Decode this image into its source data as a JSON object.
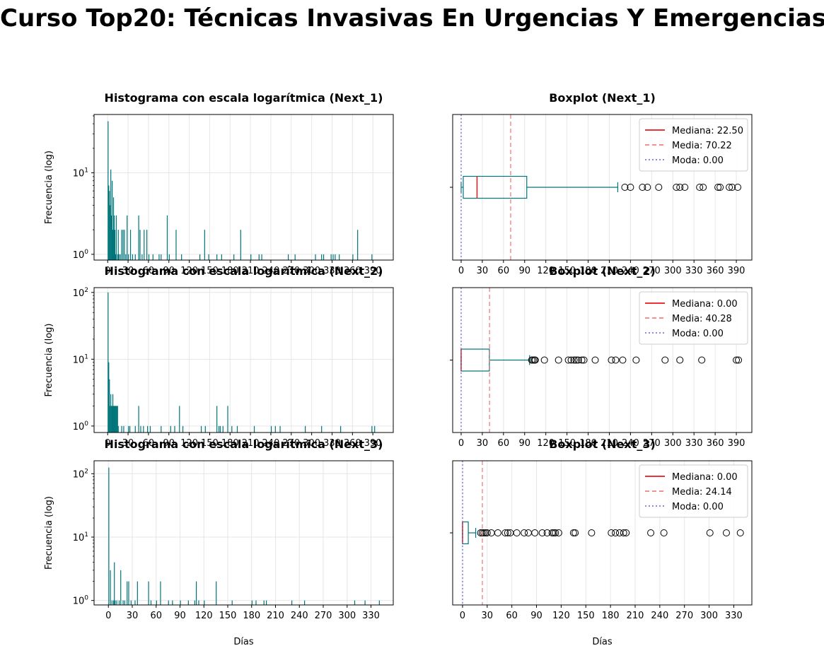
{
  "figure": {
    "title": "Curso Top20: Técnicas Invasivas En Urgencias Y Emergencias"
  },
  "chart_data": [
    {
      "type": "bar",
      "title": "Histograma con escala logarítmica (Next_1)",
      "xlabel": "",
      "ylabel": "Frecuencia (log)",
      "yscale": "log",
      "ylim": [
        0.85,
        52
      ],
      "yticks": [
        1,
        10
      ],
      "xlim": [
        -20,
        420
      ],
      "xticks": [
        0,
        30,
        60,
        90,
        120,
        150,
        180,
        210,
        240,
        270,
        300,
        330,
        360,
        390
      ],
      "grid": true,
      "color": "#00767a",
      "bins": [
        [
          0,
          43
        ],
        [
          1,
          7
        ],
        [
          2,
          6
        ],
        [
          3,
          4
        ],
        [
          4,
          11
        ],
        [
          5,
          3
        ],
        [
          6,
          8
        ],
        [
          7,
          2
        ],
        [
          8,
          5
        ],
        [
          9,
          3
        ],
        [
          10,
          2
        ],
        [
          11,
          1
        ],
        [
          12,
          3
        ],
        [
          14,
          1
        ],
        [
          15,
          2
        ],
        [
          16,
          1
        ],
        [
          18,
          1
        ],
        [
          20,
          2
        ],
        [
          22,
          2
        ],
        [
          24,
          2
        ],
        [
          26,
          1
        ],
        [
          28,
          3
        ],
        [
          30,
          1
        ],
        [
          33,
          2
        ],
        [
          36,
          1
        ],
        [
          40,
          1
        ],
        [
          45,
          3
        ],
        [
          47,
          2
        ],
        [
          50,
          1
        ],
        [
          53,
          2
        ],
        [
          57,
          2
        ],
        [
          60,
          1
        ],
        [
          66,
          1
        ],
        [
          75,
          1
        ],
        [
          78,
          1
        ],
        [
          87,
          3
        ],
        [
          90,
          1
        ],
        [
          100,
          2
        ],
        [
          108,
          1
        ],
        [
          135,
          1
        ],
        [
          142,
          2
        ],
        [
          148,
          1
        ],
        [
          160,
          1
        ],
        [
          167,
          1
        ],
        [
          185,
          1
        ],
        [
          195,
          2
        ],
        [
          210,
          1
        ],
        [
          222,
          1
        ],
        [
          226,
          1
        ],
        [
          265,
          1
        ],
        [
          275,
          1
        ],
        [
          305,
          1
        ],
        [
          314,
          1
        ],
        [
          317,
          1
        ],
        [
          328,
          1
        ],
        [
          331,
          1
        ],
        [
          334,
          1
        ],
        [
          340,
          1
        ],
        [
          360,
          1
        ],
        [
          367,
          2
        ],
        [
          388,
          1
        ]
      ]
    },
    {
      "type": "boxplot",
      "title": "Boxplot (Next_1)",
      "xlim": [
        -12,
        412
      ],
      "xticks": [
        0,
        30,
        60,
        90,
        120,
        150,
        180,
        210,
        240,
        270,
        300,
        330,
        360,
        390
      ],
      "grid": true,
      "box": {
        "q1": 3,
        "median": 22.5,
        "q3": 93,
        "whislo": 0,
        "whishi": 222
      },
      "fliers": [
        232,
        240,
        257,
        264,
        280,
        305,
        310,
        317,
        338,
        343,
        364,
        367,
        380,
        384,
        392
      ],
      "mean": 70.22,
      "mode": 0.0,
      "legend_position": "upper-right",
      "legend": [
        "Mediana: 22.50",
        "Media: 70.22",
        "Moda: 0.00"
      ]
    },
    {
      "type": "bar",
      "title": "Histograma con escala logarítmica (Next_2)",
      "xlabel": "",
      "ylabel": "Frecuencia (log)",
      "yscale": "log",
      "ylim": [
        0.8,
        118
      ],
      "yticks": [
        1,
        10,
        100
      ],
      "xlim": [
        -20,
        420
      ],
      "xticks": [
        0,
        30,
        60,
        90,
        120,
        150,
        180,
        210,
        240,
        270,
        300,
        330,
        360,
        390
      ],
      "grid": true,
      "color": "#00767a",
      "bins": [
        [
          0,
          100
        ],
        [
          1,
          9
        ],
        [
          2,
          5
        ],
        [
          3,
          2
        ],
        [
          4,
          3
        ],
        [
          5,
          2
        ],
        [
          6,
          2
        ],
        [
          7,
          3
        ],
        [
          8,
          2
        ],
        [
          9,
          2
        ],
        [
          10,
          2
        ],
        [
          11,
          2
        ],
        [
          12,
          2
        ],
        [
          13,
          2
        ],
        [
          14,
          2
        ],
        [
          15,
          1
        ],
        [
          20,
          1
        ],
        [
          23,
          1
        ],
        [
          30,
          1
        ],
        [
          32,
          1
        ],
        [
          40,
          1
        ],
        [
          45,
          2
        ],
        [
          48,
          1
        ],
        [
          52,
          1
        ],
        [
          58,
          1
        ],
        [
          62,
          1
        ],
        [
          78,
          1
        ],
        [
          92,
          1
        ],
        [
          98,
          1
        ],
        [
          105,
          2
        ],
        [
          110,
          1
        ],
        [
          137,
          1
        ],
        [
          143,
          1
        ],
        [
          160,
          2
        ],
        [
          163,
          1
        ],
        [
          165,
          1
        ],
        [
          169,
          1
        ],
        [
          176,
          2
        ],
        [
          182,
          1
        ],
        [
          190,
          1
        ],
        [
          215,
          1
        ],
        [
          240,
          1
        ],
        [
          246,
          1
        ],
        [
          253,
          1
        ],
        [
          290,
          1
        ],
        [
          314,
          1
        ],
        [
          342,
          1
        ],
        [
          388,
          1
        ],
        [
          392,
          1
        ]
      ]
    },
    {
      "type": "boxplot",
      "title": "Boxplot (Next_2)",
      "xlim": [
        -12,
        412
      ],
      "xticks": [
        0,
        30,
        60,
        90,
        120,
        150,
        180,
        210,
        240,
        270,
        300,
        330,
        360,
        390
      ],
      "grid": true,
      "box": {
        "q1": 0,
        "median": 0,
        "q3": 40,
        "whislo": 0,
        "whishi": 97
      },
      "fliers": [
        100,
        102,
        104,
        105,
        118,
        138,
        152,
        156,
        160,
        163,
        166,
        171,
        174,
        190,
        213,
        219,
        229,
        248,
        289,
        310,
        341,
        390,
        393
      ],
      "mean": 40.28,
      "mode": 0.0,
      "legend_position": "upper-right",
      "legend": [
        "Mediana: 0.00",
        "Media: 40.28",
        "Moda: 0.00"
      ]
    },
    {
      "type": "bar",
      "title": "Histograma con escala logarítmica (Next_3)",
      "xlabel": "Días",
      "ylabel": "Frecuencia (log)",
      "yscale": "log",
      "ylim": [
        0.85,
        160
      ],
      "yticks": [
        1,
        10,
        100
      ],
      "xlim": [
        -18,
        358
      ],
      "xticks": [
        0,
        30,
        60,
        90,
        120,
        150,
        180,
        210,
        240,
        270,
        300,
        330
      ],
      "grid": true,
      "color": "#00767a",
      "bins": [
        [
          0,
          125
        ],
        [
          2,
          3
        ],
        [
          4,
          1
        ],
        [
          6,
          1
        ],
        [
          7,
          4
        ],
        [
          8,
          1
        ],
        [
          10,
          1
        ],
        [
          13,
          1
        ],
        [
          15,
          3
        ],
        [
          18,
          1
        ],
        [
          20,
          1
        ],
        [
          23,
          2
        ],
        [
          25,
          2
        ],
        [
          28,
          1
        ],
        [
          33,
          1
        ],
        [
          36,
          2
        ],
        [
          50,
          2
        ],
        [
          53,
          1
        ],
        [
          60,
          1
        ],
        [
          65,
          2
        ],
        [
          75,
          1
        ],
        [
          80,
          1
        ],
        [
          90,
          1
        ],
        [
          100,
          1
        ],
        [
          108,
          1
        ],
        [
          110,
          2
        ],
        [
          113,
          1
        ],
        [
          120,
          1
        ],
        [
          135,
          2
        ],
        [
          155,
          1
        ],
        [
          180,
          1
        ],
        [
          185,
          1
        ],
        [
          195,
          1
        ],
        [
          198,
          1
        ],
        [
          230,
          1
        ],
        [
          246,
          1
        ],
        [
          309,
          1
        ],
        [
          322,
          1
        ],
        [
          340,
          1
        ]
      ]
    },
    {
      "type": "boxplot",
      "title": "Boxplot (Next_3)",
      "xlabel": "Días",
      "xlim": [
        -12,
        352
      ],
      "xticks": [
        0,
        30,
        60,
        90,
        120,
        150,
        180,
        210,
        240,
        270,
        300,
        330
      ],
      "grid": true,
      "box": {
        "q1": 0,
        "median": 0,
        "q3": 7,
        "whislo": 0,
        "whishi": 16
      },
      "fliers": [
        22,
        24,
        26,
        28,
        30,
        35,
        43,
        52,
        55,
        58,
        66,
        75,
        80,
        88,
        97,
        103,
        109,
        111,
        113,
        117,
        135,
        137,
        157,
        181,
        186,
        191,
        196,
        199,
        229,
        245,
        301,
        321,
        338
      ],
      "mean": 24.14,
      "mode": 0.0,
      "legend_position": "upper-right",
      "legend": [
        "Mediana: 0.00",
        "Media: 24.14",
        "Moda: 0.00"
      ]
    }
  ],
  "colors": {
    "bar": "#00767a",
    "box": "#00767a",
    "median": "#e41a1c",
    "mean": "#f08080",
    "mode": "#7b7bdc",
    "grid": "#e6e6e6"
  }
}
